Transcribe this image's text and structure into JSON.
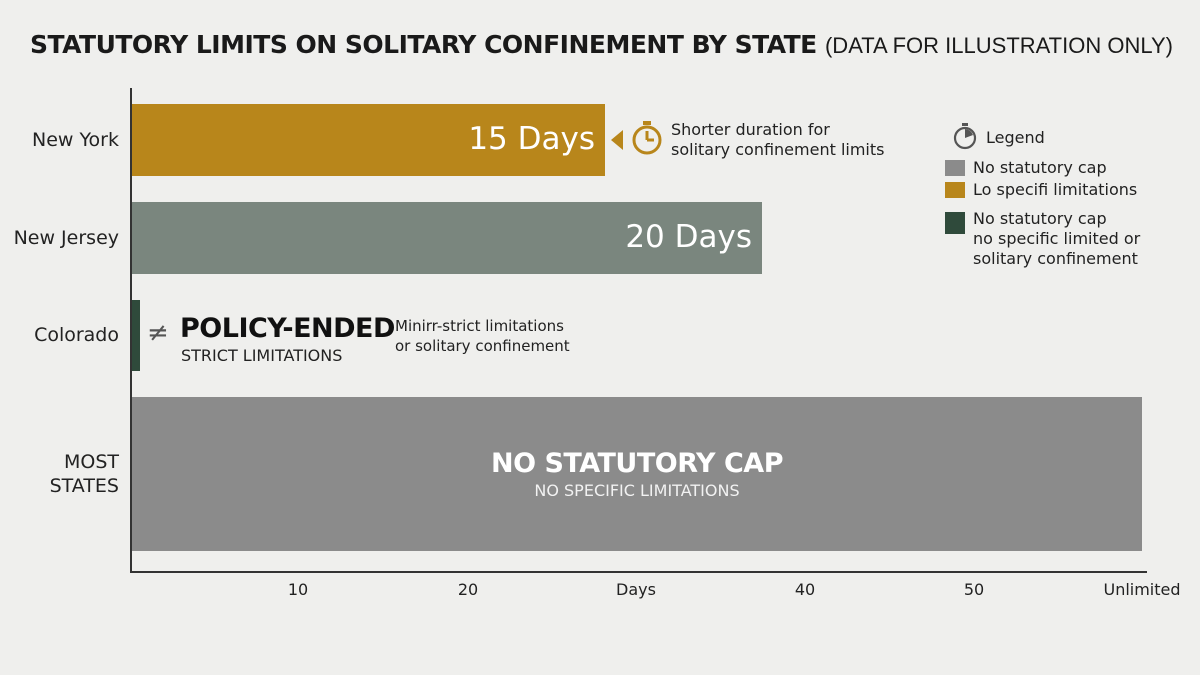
{
  "header": {
    "title": "STATUTORY LIMITS ON SOLITARY CONFINEMENT BY STATE",
    "subtitle": "(DATA FOR ILLUSTRATION ONLY)"
  },
  "colors": {
    "gold": "#b8861b",
    "green_gray": "#7a867e",
    "dark_green": "#2f4a3b",
    "gray": "#8b8b8b",
    "axis": "#333333",
    "background": "#efefed"
  },
  "chart_data": {
    "type": "bar",
    "orientation": "horizontal",
    "title": "STATUTORY LIMITS ON SOLITARY CONFINEMENT BY STATE",
    "subtitle": "(DATA FOR ILLUSTRATION ONLY)",
    "categories": [
      "New York",
      "New Jersey",
      "Colorado",
      "MOST STATES"
    ],
    "values": [
      15,
      20,
      0,
      "Unlimited"
    ],
    "value_labels": [
      "15 Days",
      "20 Days",
      "",
      ""
    ],
    "xlabel": "Days",
    "x_ticks": [
      "10",
      "20",
      "Days",
      "40",
      "50",
      "Unlimited"
    ],
    "grid": false,
    "legend_position": "right",
    "legend": {
      "title": "Legend",
      "items": [
        {
          "label": "No statutory cap",
          "color": "#8b8b8b"
        },
        {
          "label": "Lo specifi limitations",
          "color": "#b8861b"
        },
        {
          "label": "No statutory cap no specific limited or solitary confinement",
          "color": "#2f4a3b"
        }
      ]
    }
  },
  "annotations": {
    "ny_note_line1": "Shorter duration for",
    "ny_note_line2": "solitary confinement limits",
    "colorado_big": "POLICY-ENDED",
    "colorado_small": "STRICT LIMITATIONS",
    "colorado_note_line1": "Minirr-strict limitations",
    "colorado_note_line2": "or solitary confinement",
    "colorado_symbol": "≠",
    "most_states_big": "NO STATUTORY CAP",
    "most_states_small": "NO SPECIFIC LIMITATIONS"
  },
  "legend_view": {
    "title": "Legend",
    "item1": "No statutory cap",
    "item2": "Lo specifi limitations",
    "item3_line1": "No statutory cap",
    "item3_line2": "no specific limited or",
    "item3_line3": "solitary confinement"
  },
  "icons": {
    "timer": "stopwatch-icon",
    "arrow": "triangle-left-icon",
    "not_equal": "not-equal-icon"
  }
}
